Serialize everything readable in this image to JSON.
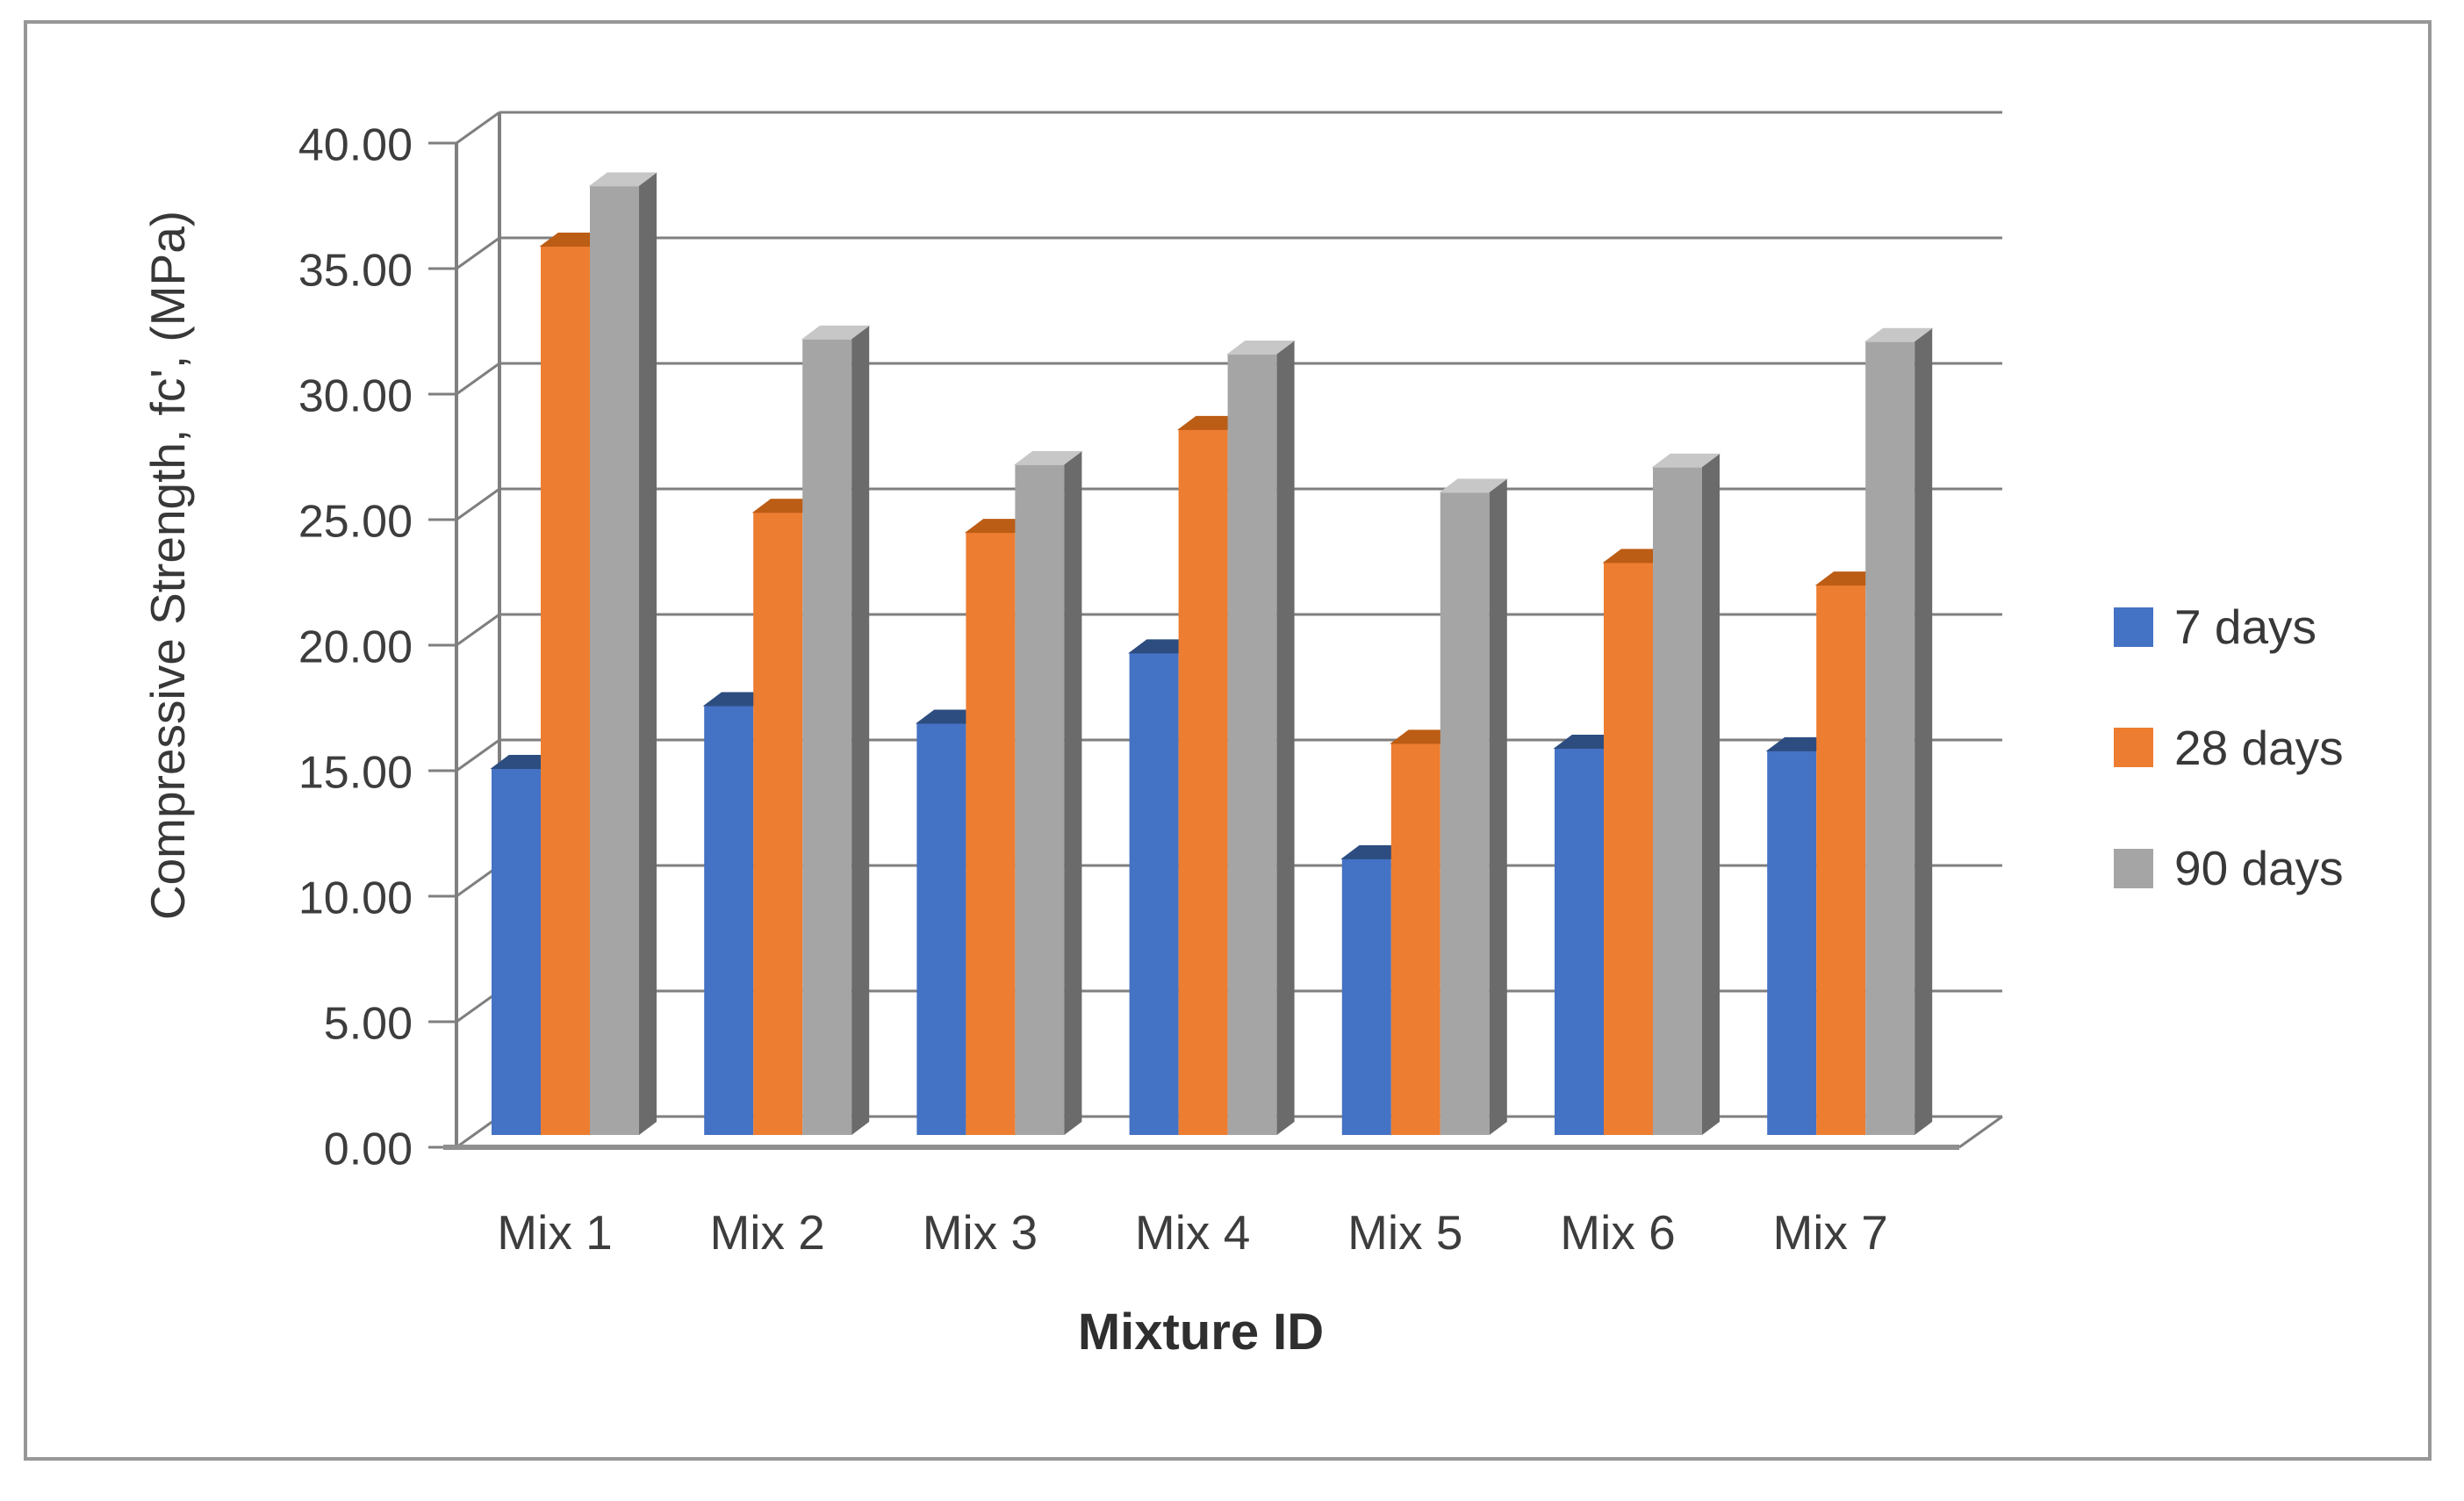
{
  "frame": {
    "border_color": "#979797"
  },
  "colors": {
    "background": "#ffffff",
    "axis": "#7f7f7f",
    "grid": "#7f7f7f",
    "floor": "#8f8f8f",
    "text": "#3d3d3d"
  },
  "chart_data": {
    "type": "bar",
    "variant": "3d-clustered-column",
    "title": "",
    "xlabel": "Mixture ID",
    "ylabel": "Compressive Strength, fc', (MPa)",
    "categories": [
      "Mix 1",
      "Mix 2",
      "Mix 3",
      "Mix 4",
      "Mix 5",
      "Mix 6",
      "Mix 7"
    ],
    "series": [
      {
        "name": "7 days",
        "color": "#4472C4",
        "top_color": "#2d4d80",
        "values": [
          14.6,
          17.1,
          16.4,
          19.2,
          11.0,
          15.4,
          15.3
        ]
      },
      {
        "name": "28 days",
        "color": "#ED7D31",
        "top_color": "#bc5d15",
        "values": [
          35.4,
          24.8,
          24.0,
          28.1,
          15.6,
          22.8,
          21.9
        ]
      },
      {
        "name": "90 days",
        "color": "#A5A5A5",
        "top_color": "#c7c7c7",
        "side_color": "#6b6b6b",
        "values": [
          37.8,
          31.7,
          26.7,
          31.1,
          25.6,
          26.6,
          31.6
        ]
      }
    ],
    "ylim": [
      0,
      40
    ],
    "ytick_step": 5,
    "ytick_labels": [
      "0.00",
      "5.00",
      "10.00",
      "15.00",
      "20.00",
      "25.00",
      "30.00",
      "35.00",
      "40.00"
    ],
    "grid": true,
    "legend_position": "right"
  }
}
